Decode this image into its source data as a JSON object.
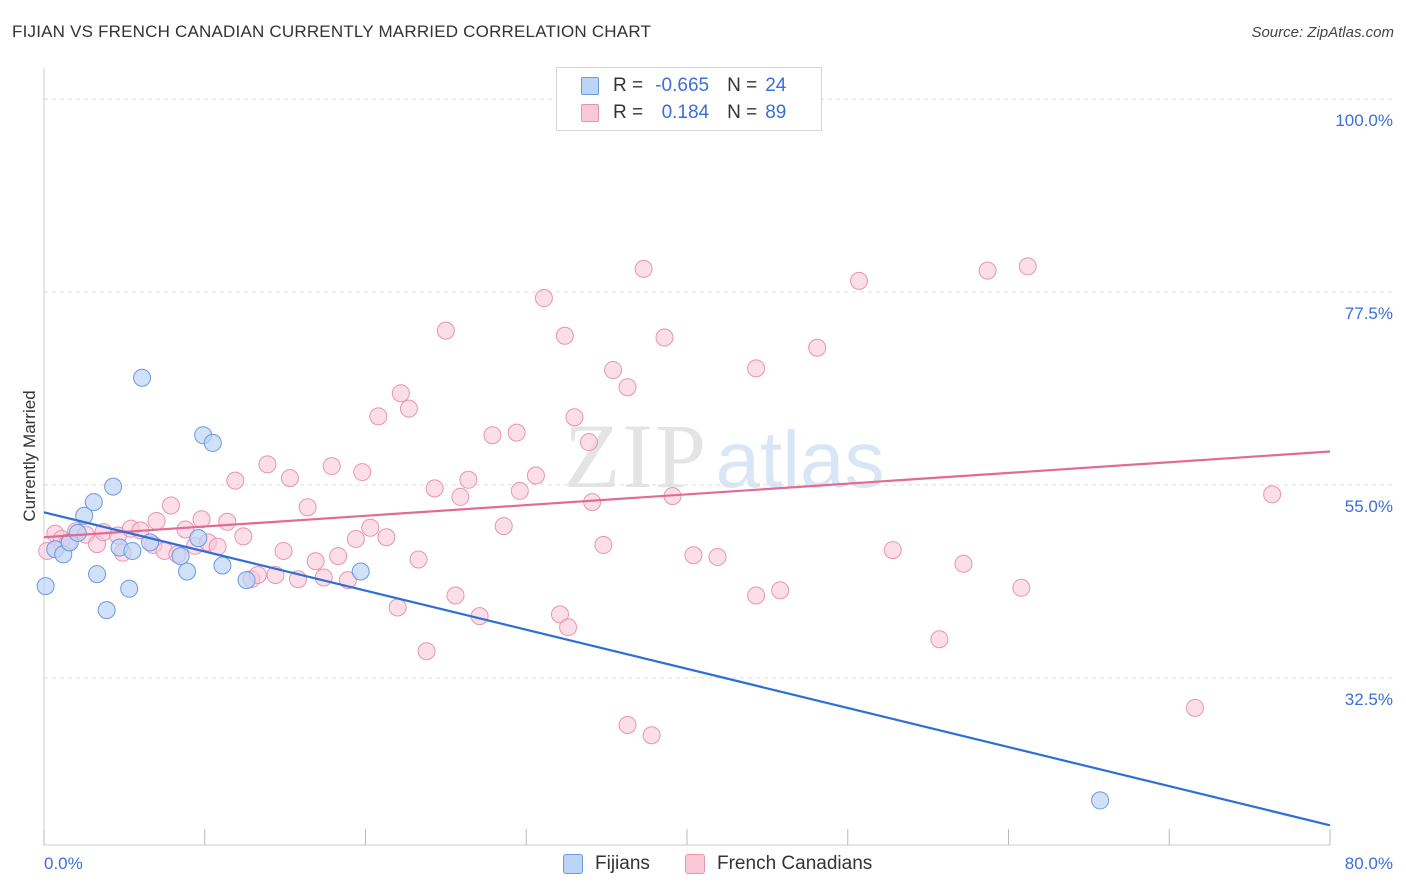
{
  "title": "FIJIAN VS FRENCH CANADIAN CURRENTLY MARRIED CORRELATION CHART",
  "source": "Source: ZipAtlas.com",
  "watermark": {
    "zip": "ZIP",
    "atlas": "atlas"
  },
  "colors": {
    "fijians_fill": "#bcd4f6",
    "fijians_stroke": "#6b9ae0",
    "fijians_line": "#2e6fd6",
    "french_fill": "#f9c8d7",
    "french_stroke": "#e894b0",
    "french_line": "#e26a96",
    "value_blue": "#3a6fd8",
    "grid": "#dddddd"
  },
  "legend": {
    "rows": [
      {
        "r_label": "R =",
        "r_value": "-0.665",
        "n_label": "N =",
        "n_value": "24"
      },
      {
        "r_label": "R =",
        "r_value": "0.184",
        "n_label": "N =",
        "n_value": "89"
      }
    ]
  },
  "bottom_legend": {
    "fijians": "Fijians",
    "french": "French Canadians"
  },
  "chart_data": {
    "type": "scatter",
    "title": "FIJIAN VS FRENCH CANADIAN CURRENTLY MARRIED CORRELATION CHART",
    "xlabel": "",
    "ylabel": "Currently Married",
    "xlim": [
      0,
      80
    ],
    "ylim": [
      13,
      102
    ],
    "x_tick_labels": [
      "0.0%",
      "80.0%"
    ],
    "y_ticks": [
      32.5,
      55.0,
      77.5,
      100.0
    ],
    "y_tick_labels": [
      "32.5%",
      "55.0%",
      "77.5%",
      "100.0%"
    ],
    "grid": true,
    "series": [
      {
        "name": "Fijians",
        "R": -0.665,
        "N": 24,
        "trend": {
          "x": [
            0,
            80
          ],
          "y": [
            51.8,
            15.3
          ]
        },
        "points": [
          {
            "x": 0.1,
            "y": 43.2
          },
          {
            "x": 0.7,
            "y": 47.5
          },
          {
            "x": 1.2,
            "y": 46.9
          },
          {
            "x": 1.6,
            "y": 48.3
          },
          {
            "x": 2.1,
            "y": 49.4
          },
          {
            "x": 2.5,
            "y": 51.4
          },
          {
            "x": 3.1,
            "y": 53.0
          },
          {
            "x": 3.3,
            "y": 44.6
          },
          {
            "x": 3.9,
            "y": 40.4
          },
          {
            "x": 4.3,
            "y": 54.8
          },
          {
            "x": 4.7,
            "y": 47.7
          },
          {
            "x": 5.3,
            "y": 42.9
          },
          {
            "x": 5.5,
            "y": 47.3
          },
          {
            "x": 6.1,
            "y": 67.5
          },
          {
            "x": 6.6,
            "y": 48.3
          },
          {
            "x": 8.5,
            "y": 46.7
          },
          {
            "x": 8.9,
            "y": 44.9
          },
          {
            "x": 9.6,
            "y": 48.8
          },
          {
            "x": 9.9,
            "y": 60.8
          },
          {
            "x": 10.5,
            "y": 59.9
          },
          {
            "x": 11.1,
            "y": 45.6
          },
          {
            "x": 12.6,
            "y": 43.9
          },
          {
            "x": 19.7,
            "y": 44.9
          },
          {
            "x": 65.7,
            "y": 18.2
          }
        ]
      },
      {
        "name": "French Canadians",
        "R": 0.184,
        "N": 89,
        "trend": {
          "x": [
            0,
            80
          ],
          "y": [
            48.9,
            58.9
          ]
        },
        "points": [
          {
            "x": 0.2,
            "y": 47.3
          },
          {
            "x": 0.7,
            "y": 49.3
          },
          {
            "x": 1.1,
            "y": 48.7
          },
          {
            "x": 1.5,
            "y": 48.3
          },
          {
            "x": 2.0,
            "y": 49.6
          },
          {
            "x": 2.6,
            "y": 49.2
          },
          {
            "x": 3.3,
            "y": 48.1
          },
          {
            "x": 3.7,
            "y": 49.5
          },
          {
            "x": 4.6,
            "y": 49.1
          },
          {
            "x": 4.9,
            "y": 47.1
          },
          {
            "x": 5.4,
            "y": 49.9
          },
          {
            "x": 6.0,
            "y": 49.7
          },
          {
            "x": 6.8,
            "y": 48.0
          },
          {
            "x": 7.0,
            "y": 50.8
          },
          {
            "x": 7.5,
            "y": 47.3
          },
          {
            "x": 7.9,
            "y": 52.6
          },
          {
            "x": 8.3,
            "y": 46.9
          },
          {
            "x": 8.8,
            "y": 49.8
          },
          {
            "x": 9.4,
            "y": 47.9
          },
          {
            "x": 9.8,
            "y": 51.0
          },
          {
            "x": 10.2,
            "y": 48.3
          },
          {
            "x": 10.8,
            "y": 47.8
          },
          {
            "x": 11.4,
            "y": 50.7
          },
          {
            "x": 11.9,
            "y": 55.5
          },
          {
            "x": 12.4,
            "y": 49.0
          },
          {
            "x": 12.9,
            "y": 44.0
          },
          {
            "x": 13.3,
            "y": 44.5
          },
          {
            "x": 13.9,
            "y": 57.4
          },
          {
            "x": 14.4,
            "y": 44.5
          },
          {
            "x": 14.9,
            "y": 47.3
          },
          {
            "x": 15.3,
            "y": 55.8
          },
          {
            "x": 15.8,
            "y": 44.0
          },
          {
            "x": 16.4,
            "y": 52.4
          },
          {
            "x": 16.9,
            "y": 46.1
          },
          {
            "x": 17.4,
            "y": 44.2
          },
          {
            "x": 17.9,
            "y": 57.2
          },
          {
            "x": 18.3,
            "y": 46.7
          },
          {
            "x": 18.9,
            "y": 43.9
          },
          {
            "x": 19.4,
            "y": 48.7
          },
          {
            "x": 19.8,
            "y": 56.5
          },
          {
            "x": 20.3,
            "y": 50.0
          },
          {
            "x": 20.8,
            "y": 63.0
          },
          {
            "x": 21.3,
            "y": 48.9
          },
          {
            "x": 22.0,
            "y": 40.7
          },
          {
            "x": 22.2,
            "y": 65.7
          },
          {
            "x": 22.7,
            "y": 63.9
          },
          {
            "x": 23.3,
            "y": 46.3
          },
          {
            "x": 23.8,
            "y": 35.6
          },
          {
            "x": 24.3,
            "y": 54.6
          },
          {
            "x": 25.0,
            "y": 73.0
          },
          {
            "x": 25.6,
            "y": 42.1
          },
          {
            "x": 25.9,
            "y": 53.6
          },
          {
            "x": 26.4,
            "y": 55.6
          },
          {
            "x": 27.1,
            "y": 39.7
          },
          {
            "x": 27.9,
            "y": 60.8
          },
          {
            "x": 28.6,
            "y": 50.2
          },
          {
            "x": 29.4,
            "y": 61.1
          },
          {
            "x": 29.6,
            "y": 54.3
          },
          {
            "x": 30.6,
            "y": 56.1
          },
          {
            "x": 31.1,
            "y": 76.8
          },
          {
            "x": 32.1,
            "y": 39.9
          },
          {
            "x": 32.4,
            "y": 72.4
          },
          {
            "x": 32.6,
            "y": 38.4
          },
          {
            "x": 33.0,
            "y": 62.9
          },
          {
            "x": 34.1,
            "y": 53.0
          },
          {
            "x": 33.9,
            "y": 60.0
          },
          {
            "x": 34.8,
            "y": 48.0
          },
          {
            "x": 35.4,
            "y": 68.4
          },
          {
            "x": 36.3,
            "y": 66.4
          },
          {
            "x": 36.3,
            "y": 27.0
          },
          {
            "x": 37.3,
            "y": 80.2
          },
          {
            "x": 37.8,
            "y": 25.8
          },
          {
            "x": 38.6,
            "y": 72.2
          },
          {
            "x": 39.1,
            "y": 53.7
          },
          {
            "x": 40.4,
            "y": 46.8
          },
          {
            "x": 41.9,
            "y": 46.6
          },
          {
            "x": 44.3,
            "y": 68.6
          },
          {
            "x": 44.3,
            "y": 42.1
          },
          {
            "x": 45.8,
            "y": 42.7
          },
          {
            "x": 48.1,
            "y": 71.0
          },
          {
            "x": 50.7,
            "y": 78.8
          },
          {
            "x": 52.8,
            "y": 47.4
          },
          {
            "x": 55.7,
            "y": 37.0
          },
          {
            "x": 57.2,
            "y": 45.8
          },
          {
            "x": 58.7,
            "y": 80.0
          },
          {
            "x": 60.8,
            "y": 43.0
          },
          {
            "x": 61.2,
            "y": 80.5
          },
          {
            "x": 71.6,
            "y": 29.0
          },
          {
            "x": 76.4,
            "y": 53.9
          }
        ]
      }
    ]
  }
}
